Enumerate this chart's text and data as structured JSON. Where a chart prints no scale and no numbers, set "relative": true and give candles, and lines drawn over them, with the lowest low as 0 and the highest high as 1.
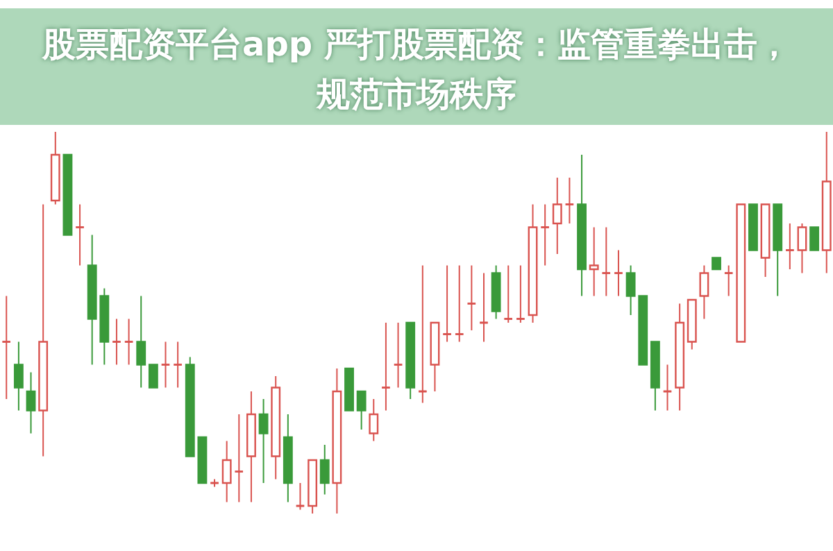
{
  "chart_data": {
    "type": "candlestick",
    "relative": true,
    "title": "股票配资平台app 严打股票配资：监管重拳出击，规范市场秩序",
    "categories": [
      null,
      null,
      null,
      null,
      null,
      null,
      null,
      null,
      null,
      null,
      null,
      null,
      null,
      null,
      null,
      null,
      null,
      null,
      null,
      null,
      null,
      null,
      null,
      null,
      null,
      null,
      null,
      null,
      null,
      null,
      null,
      null,
      null,
      null,
      null,
      null,
      null,
      null,
      null,
      null,
      null,
      null,
      null,
      null,
      null,
      null,
      null,
      null,
      null,
      null,
      null,
      null,
      null,
      null,
      null,
      null,
      null,
      null,
      null,
      null,
      null,
      null,
      null,
      null,
      null,
      null,
      null,
      null
    ],
    "ohlc": [
      [
        0.45,
        0.57,
        0.3,
        0.45
      ],
      [
        0.39,
        0.45,
        0.27,
        0.33
      ],
      [
        0.32,
        0.37,
        0.21,
        0.27
      ],
      [
        0.27,
        0.81,
        0.15,
        0.45
      ],
      [
        0.82,
        1.0,
        0.81,
        0.94
      ],
      [
        0.94,
        0.94,
        0.73,
        0.73
      ],
      [
        0.75,
        0.81,
        0.65,
        0.75
      ],
      [
        0.65,
        0.73,
        0.39,
        0.51
      ],
      [
        0.57,
        0.59,
        0.39,
        0.45
      ],
      [
        0.45,
        0.51,
        0.39,
        0.45
      ],
      [
        0.45,
        0.51,
        0.39,
        0.45
      ],
      [
        0.45,
        0.57,
        0.33,
        0.39
      ],
      [
        0.39,
        0.39,
        0.33,
        0.33
      ],
      [
        0.39,
        0.45,
        0.33,
        0.39
      ],
      [
        0.39,
        0.45,
        0.33,
        0.39
      ],
      [
        0.39,
        0.41,
        0.15,
        0.15
      ],
      [
        0.2,
        0.2,
        0.08,
        0.08
      ],
      [
        0.08,
        0.09,
        0.07,
        0.08
      ],
      [
        0.08,
        0.19,
        0.03,
        0.14
      ],
      [
        0.11,
        0.26,
        0.03,
        0.11
      ],
      [
        0.15,
        0.32,
        0.03,
        0.26
      ],
      [
        0.26,
        0.3,
        0.08,
        0.21
      ],
      [
        0.15,
        0.36,
        0.09,
        0.33
      ],
      [
        0.2,
        0.26,
        0.03,
        0.08
      ],
      [
        0.02,
        0.08,
        0.01,
        0.02
      ],
      [
        0.02,
        0.14,
        0.0,
        0.14
      ],
      [
        0.14,
        0.18,
        0.05,
        0.08
      ],
      [
        0.08,
        0.38,
        0.0,
        0.32
      ],
      [
        0.38,
        0.38,
        0.27,
        0.27
      ],
      [
        0.32,
        0.32,
        0.22,
        0.27
      ],
      [
        0.21,
        0.3,
        0.19,
        0.26
      ],
      [
        0.33,
        0.5,
        0.27,
        0.33
      ],
      [
        0.39,
        0.5,
        0.33,
        0.39
      ],
      [
        0.5,
        0.5,
        0.3,
        0.33
      ],
      [
        0.32,
        0.65,
        0.29,
        0.32
      ],
      [
        0.39,
        0.5,
        0.32,
        0.5
      ],
      [
        0.47,
        0.65,
        0.45,
        0.47
      ],
      [
        0.47,
        0.65,
        0.45,
        0.47
      ],
      [
        0.55,
        0.65,
        0.48,
        0.55
      ],
      [
        0.5,
        0.63,
        0.45,
        0.5
      ],
      [
        0.63,
        0.65,
        0.51,
        0.53
      ],
      [
        0.51,
        0.65,
        0.5,
        0.51
      ],
      [
        0.51,
        0.65,
        0.5,
        0.51
      ],
      [
        0.52,
        0.81,
        0.5,
        0.75
      ],
      [
        0.75,
        0.81,
        0.65,
        0.75
      ],
      [
        0.76,
        0.88,
        0.68,
        0.81
      ],
      [
        0.81,
        0.88,
        0.76,
        0.81
      ],
      [
        0.81,
        0.94,
        0.57,
        0.64
      ],
      [
        0.64,
        0.75,
        0.57,
        0.65
      ],
      [
        0.63,
        0.75,
        0.57,
        0.63
      ],
      [
        0.63,
        0.69,
        0.57,
        0.63
      ],
      [
        0.63,
        0.65,
        0.52,
        0.57
      ],
      [
        0.57,
        0.57,
        0.39,
        0.39
      ],
      [
        0.45,
        0.45,
        0.27,
        0.33
      ],
      [
        0.32,
        0.39,
        0.27,
        0.32
      ],
      [
        0.33,
        0.55,
        0.27,
        0.5
      ],
      [
        0.45,
        0.56,
        0.43,
        0.56
      ],
      [
        0.57,
        0.65,
        0.51,
        0.63
      ],
      [
        0.67,
        0.67,
        0.64,
        0.64
      ],
      [
        0.63,
        0.65,
        0.57,
        0.63
      ],
      [
        0.45,
        0.81,
        0.45,
        0.81
      ],
      [
        0.81,
        0.81,
        0.69,
        0.69
      ],
      [
        0.67,
        0.81,
        0.62,
        0.81
      ],
      [
        0.81,
        0.81,
        0.57,
        0.69
      ],
      [
        0.69,
        0.76,
        0.64,
        0.69
      ],
      [
        0.69,
        0.76,
        0.63,
        0.75
      ],
      [
        0.75,
        0.75,
        0.69,
        0.69
      ],
      [
        0.69,
        1.0,
        0.63,
        0.87
      ]
    ]
  }
}
